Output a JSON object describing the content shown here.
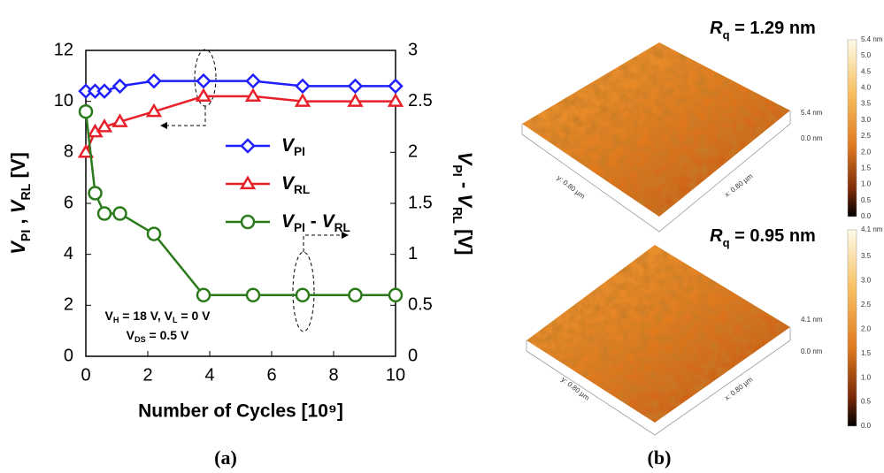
{
  "chart_data": {
    "type": "line",
    "x_label": "Number of Cycles [10⁹]",
    "y_label": "VPI , VRL [V]",
    "y2_label": "VPI - VRL [V]",
    "x": [
      0,
      0.3,
      0.6,
      1.1,
      2.2,
      3.8,
      5.4,
      7,
      8.7,
      10
    ],
    "series": [
      {
        "name": "VPI",
        "color": "#1f1fff",
        "marker": "diamond",
        "values": [
          10.4,
          10.4,
          10.4,
          10.6,
          10.8,
          10.8,
          10.8,
          10.6,
          10.6,
          10.6
        ]
      },
      {
        "name": "VRL",
        "color": "#e8202a",
        "marker": "triangle",
        "values": [
          8,
          8.8,
          9,
          9.2,
          9.6,
          10.2,
          10.2,
          10,
          10,
          10
        ]
      },
      {
        "name": "VPI - VRL",
        "color": "#2a7a1a",
        "marker": "circle",
        "axis": "y2",
        "values": [
          2.4,
          1.6,
          1.4,
          1.4,
          1.2,
          0.6,
          0.6,
          0.6,
          0.6,
          0.6
        ]
      }
    ],
    "xlim": [
      0,
      10
    ],
    "xticks": [
      0,
      2,
      4,
      6,
      8,
      10
    ],
    "ylim": [
      0,
      12
    ],
    "yticks": [
      0,
      2,
      4,
      6,
      8,
      10,
      12
    ],
    "y2lim": [
      0,
      3
    ],
    "y2ticks": [
      0,
      0.5,
      1,
      1.5,
      2,
      2.5,
      3
    ],
    "annotations": [
      "VH = 18 V, VL = 0 V",
      "VDS = 0.5 V"
    ],
    "panel_label": "(a)"
  },
  "afm": {
    "panel_label": "(b)",
    "panels": [
      {
        "roughness": "Rq = 1.29 nm",
        "height_top": "5.4 nm",
        "height_bottom": "0.0 nm",
        "y_axis": "y: 0.80 µm",
        "x_axis": "x: 0.80 µm",
        "colorbar": [
          "5.4 nm",
          "5.0",
          "4.5",
          "4.0",
          "3.5",
          "3.0",
          "2.5",
          "2.0",
          "1.5",
          "1.0",
          "0.5",
          "0.0"
        ]
      },
      {
        "roughness": "Rq = 0.95 nm",
        "height_top": "4.1 nm",
        "height_bottom": "0.0 nm",
        "y_axis": "y: 0.80 µm",
        "x_axis": "x: 0.80 µm",
        "colorbar": [
          "4.1 nm",
          "3.5",
          "3.0",
          "2.5",
          "2.0",
          "1.5",
          "1.0",
          "0.5",
          "0.0"
        ]
      }
    ]
  }
}
